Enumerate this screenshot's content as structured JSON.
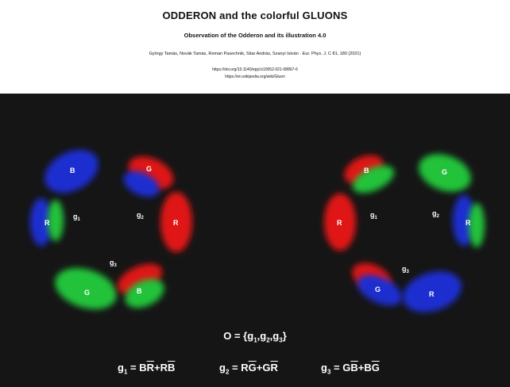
{
  "header": {
    "title": "ODDERON and the colorful GLUONS",
    "subtitle": "Observation of the Odderon and its illustration 4.0",
    "authors": "György Tamás, Novák Tamás, Roman Pasechnik, Sitar András, Szanyi István · Eur. Phys. J. C 81, 180 (2021)",
    "link1": "https://doi.org/10.1140/epjc/s10052-021-08867-6",
    "link2": "https://en.wikipedia.org/wiki/Gluon"
  },
  "gluon_labels": {
    "g1": "g",
    "g1_sub": "1",
    "g2": "g",
    "g2_sub": "2",
    "g3": "g",
    "g3_sub": "3"
  },
  "left_ring": {
    "blobs": [
      {
        "color": "blue",
        "label": "B"
      },
      {
        "color": "red",
        "label": "G"
      },
      {
        "color": "red",
        "label": "R"
      },
      {
        "color": "red",
        "label": "B"
      },
      {
        "color": "green",
        "label": "G"
      },
      {
        "color": "blue",
        "label": "R"
      }
    ]
  },
  "right_ring": {
    "blobs": [
      {
        "color": "red",
        "label": "B"
      },
      {
        "color": "green",
        "label": "G"
      },
      {
        "color": "blue",
        "label": "R"
      },
      {
        "color": "blue",
        "label": "G"
      },
      {
        "color": "blue",
        "label": "R"
      },
      {
        "color": "red",
        "label": "R"
      }
    ]
  },
  "formulas": {
    "odderon_lhs": "O = {",
    "odderon_g1": "g",
    "odderon_sep1": ",",
    "odderon_g2": "g",
    "odderon_sep2": ",",
    "odderon_g3": "g",
    "odderon_rhs": "}",
    "f1_lhs": "= B",
    "f1_mid": "+R",
    "f1_a": "R",
    "f1_b": "B",
    "f2_lhs": "= R",
    "f2_mid": "+G",
    "f2_a": "G",
    "f2_b": "R",
    "f3_lhs": "= G",
    "f3_mid": "+B",
    "f3_a": "B",
    "f3_b": "G"
  },
  "colors": {
    "red": "#e01818",
    "green": "#22c23a",
    "blue": "#1c2fd0",
    "background": "#151515"
  }
}
